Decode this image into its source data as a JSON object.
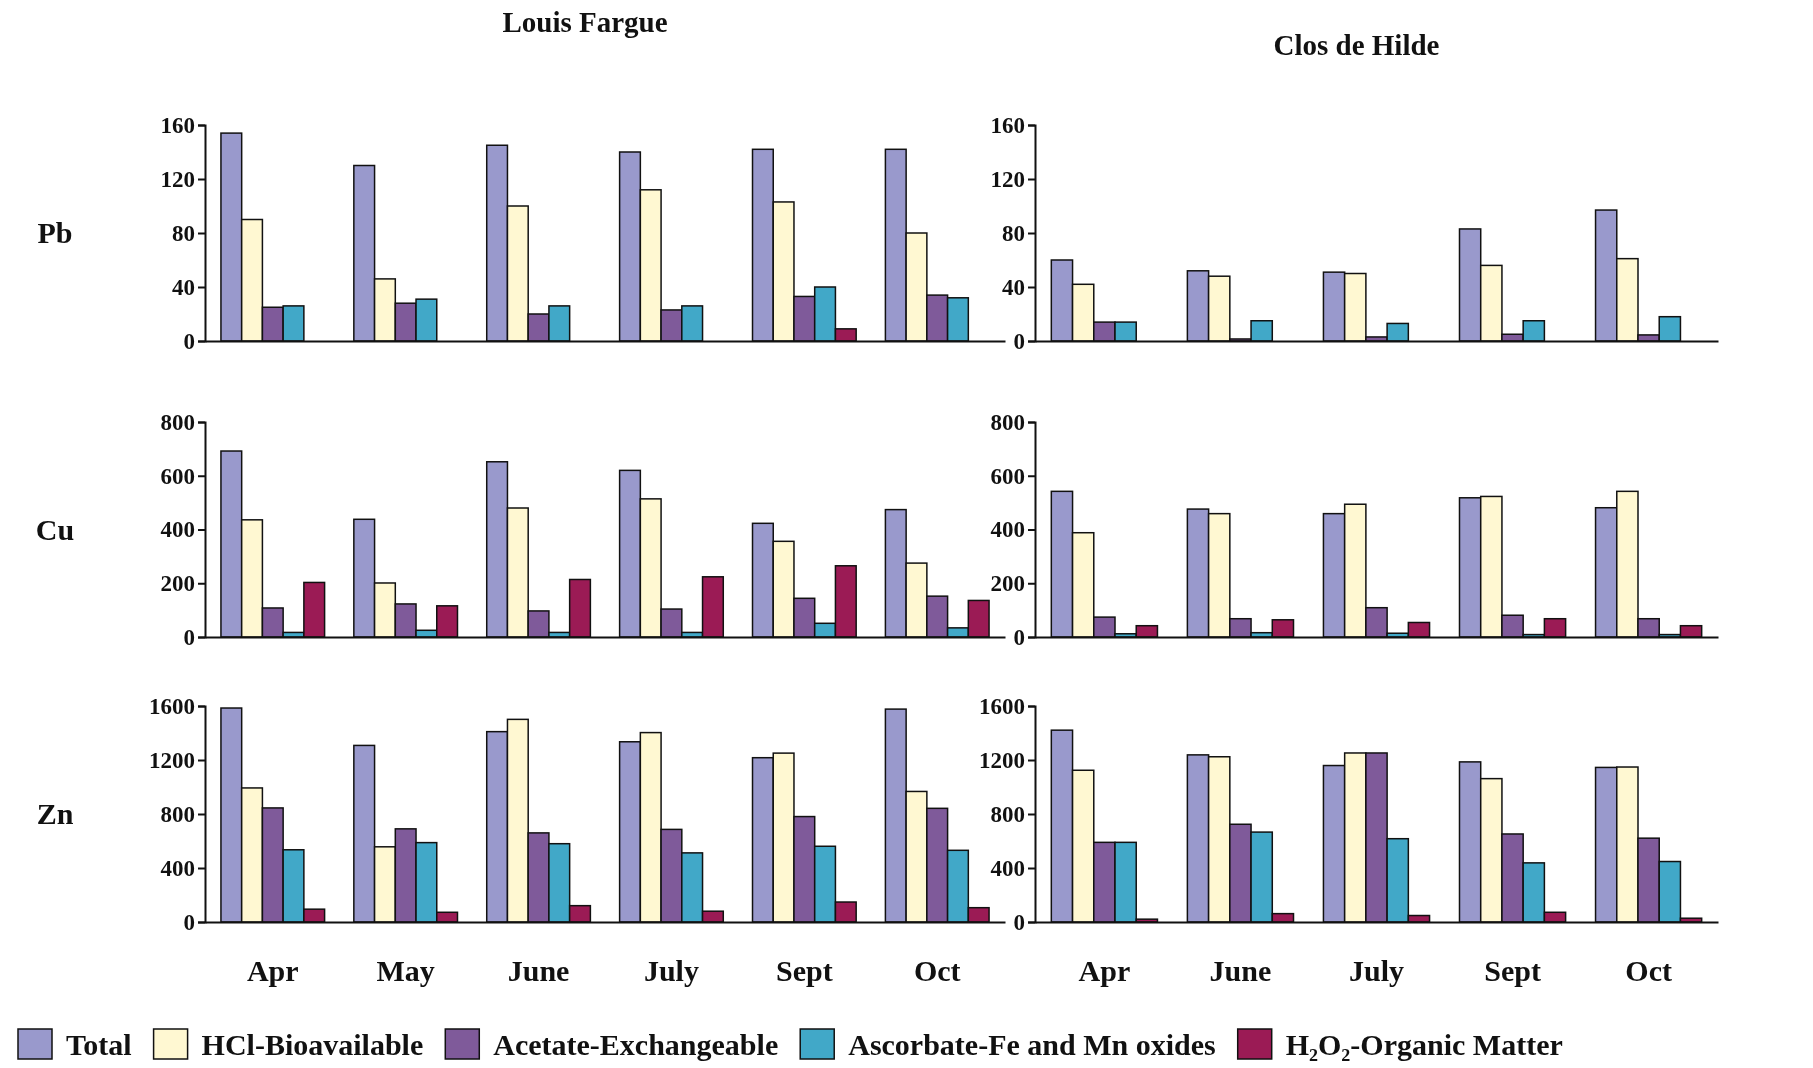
{
  "chart_data": [
    {
      "type": "bar",
      "title": "Louis Fargue",
      "ylabel": "Pb",
      "categories": [
        null,
        null,
        null,
        null,
        null,
        null
      ],
      "ylim": [
        0,
        160
      ],
      "yticks": [
        0,
        40,
        80,
        120,
        160
      ],
      "grid": false,
      "series": [
        {
          "color": "#9999cc",
          "values": [
            154,
            130,
            145,
            140,
            142,
            142
          ]
        },
        {
          "color": "#fff8d2",
          "values": [
            90,
            46,
            100,
            112,
            103,
            80
          ]
        },
        {
          "color": "#7f5a9a",
          "values": [
            25,
            28,
            20,
            23,
            33,
            34
          ]
        },
        {
          "color": "#41a8c8",
          "values": [
            26,
            31,
            26,
            26,
            40,
            32
          ]
        },
        {
          "color": "#9b1b55",
          "values": [
            0,
            0,
            0,
            0,
            9,
            0
          ]
        }
      ]
    },
    {
      "type": "bar",
      "title": "Clos de Hilde",
      "categories": [
        null,
        null,
        null,
        null,
        null
      ],
      "ylim": [
        0,
        160
      ],
      "yticks": [
        0,
        40,
        80,
        120,
        160
      ],
      "grid": false,
      "series": [
        {
          "color": "#9999cc",
          "values": [
            60,
            52,
            51,
            83,
            97
          ]
        },
        {
          "color": "#fff8d2",
          "values": [
            42,
            48,
            50,
            56,
            61
          ]
        },
        {
          "color": "#7f5a9a",
          "values": [
            14,
            1.5,
            3,
            5,
            4.5
          ]
        },
        {
          "color": "#41a8c8",
          "values": [
            14,
            15,
            13,
            15,
            18
          ]
        },
        {
          "color": "#9b1b55",
          "values": [
            0,
            0,
            0,
            0,
            0
          ]
        }
      ]
    },
    {
      "type": "bar",
      "ylabel": "Cu",
      "categories": [
        null,
        null,
        null,
        null,
        null,
        null
      ],
      "ylim": [
        0,
        800
      ],
      "yticks": [
        0,
        200,
        400,
        600,
        800
      ],
      "grid": false,
      "series": [
        {
          "color": "#9999cc",
          "values": [
            692,
            438,
            652,
            620,
            423,
            474
          ]
        },
        {
          "color": "#fff8d2",
          "values": [
            436,
            201,
            480,
            514,
            356,
            275
          ]
        },
        {
          "color": "#7f5a9a",
          "values": [
            108,
            123,
            97,
            104,
            144,
            152
          ]
        },
        {
          "color": "#41a8c8",
          "values": [
            17,
            25,
            17,
            17,
            51,
            34
          ]
        },
        {
          "color": "#9b1b55",
          "values": [
            203,
            116,
            214,
            224,
            265,
            136
          ]
        }
      ]
    },
    {
      "type": "bar",
      "categories": [
        null,
        null,
        null,
        null,
        null
      ],
      "ylim": [
        0,
        800
      ],
      "yticks": [
        0,
        200,
        400,
        600,
        800
      ],
      "grid": false,
      "series": [
        {
          "color": "#9999cc",
          "values": [
            542,
            476,
            459,
            518,
            481
          ]
        },
        {
          "color": "#fff8d2",
          "values": [
            388,
            459,
            494,
            523,
            542
          ]
        },
        {
          "color": "#7f5a9a",
          "values": [
            74,
            68,
            109,
            81,
            68
          ]
        },
        {
          "color": "#41a8c8",
          "values": [
            12,
            16,
            14,
            9,
            9
          ]
        },
        {
          "color": "#9b1b55",
          "values": [
            42,
            64,
            54,
            68,
            42
          ]
        }
      ]
    },
    {
      "type": "bar",
      "ylabel": "Zn",
      "categories": [
        "Apr",
        "May",
        "June",
        "July",
        "Sept",
        "Oct"
      ],
      "ylim": [
        0,
        1600
      ],
      "yticks": [
        0,
        400,
        800,
        1200,
        1600
      ],
      "grid": false,
      "legend": "bottom",
      "series": [
        {
          "name": "Total",
          "color": "#9999cc",
          "values": [
            1585,
            1308,
            1410,
            1335,
            1217,
            1577
          ]
        },
        {
          "name": "HCl-Bioavailable",
          "color": "#fff8d2",
          "values": [
            993,
            557,
            1501,
            1403,
            1251,
            967
          ]
        },
        {
          "name": "Acetate-Exchangeable",
          "color": "#7f5a9a",
          "values": [
            845,
            690,
            660,
            686,
            781,
            842
          ]
        },
        {
          "name": "Ascorbate-Fe and Mn oxides",
          "color": "#41a8c8",
          "values": [
            535,
            588,
            580,
            512,
            561,
            531
          ]
        },
        {
          "name": "H₂O₂-Organic Matter",
          "color": "#9b1b55",
          "values": [
            95,
            72,
            121,
            80,
            148,
            106
          ]
        }
      ]
    },
    {
      "type": "bar",
      "categories": [
        "Apr",
        "June",
        "July",
        "Sept",
        "Oct"
      ],
      "ylim": [
        0,
        1600
      ],
      "yticks": [
        0,
        400,
        800,
        1200,
        1600
      ],
      "grid": false,
      "series": [
        {
          "color": "#9999cc",
          "values": [
            1421,
            1238,
            1159,
            1186,
            1145
          ]
        },
        {
          "color": "#fff8d2",
          "values": [
            1124,
            1224,
            1252,
            1062,
            1148
          ]
        },
        {
          "color": "#7f5a9a",
          "values": [
            590,
            724,
            1252,
            652,
            621
          ]
        },
        {
          "color": "#41a8c8",
          "values": [
            590,
            666,
            617,
            438,
            448
          ]
        },
        {
          "color": "#9b1b55",
          "values": [
            21,
            62,
            48,
            72,
            28
          ]
        }
      ]
    }
  ]
}
